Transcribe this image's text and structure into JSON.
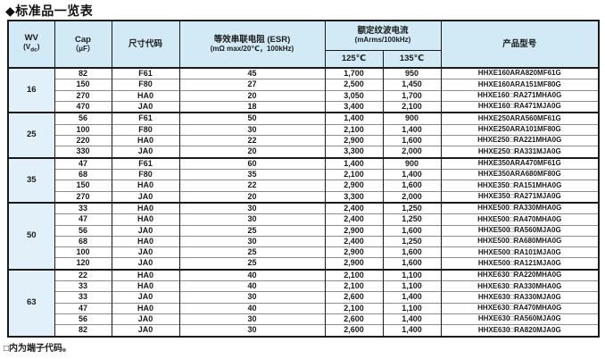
{
  "title": "◆标准品一览表",
  "footnote": "□内为端子代码。",
  "table": {
    "headers": {
      "wv_line1": "WV",
      "wv_sub_open": "(V",
      "wv_sub": "dc",
      "wv_sub_close": ")",
      "cap_line1": "Cap",
      "cap_line2": "（μF）",
      "size_code": "尺寸代码",
      "esr_line1": "等效串联电阻 (ESR)",
      "esr_line2": "(mΩ max/20℃，100kHz)",
      "ripple_line1": "额定纹波电流",
      "ripple_line2": "(mArms/100kHz)",
      "temp_125": "125℃",
      "temp_135": "135℃",
      "product": "产品型号"
    },
    "groups": [
      {
        "wv": "16",
        "rows": [
          {
            "cap": "82",
            "size": "F61",
            "esr": "45",
            "r125": "1,700",
            "r135": "950",
            "model": "HHXE160ARA820MF61G"
          },
          {
            "cap": "150",
            "size": "F80",
            "esr": "27",
            "r125": "2,500",
            "r135": "1,450",
            "model": "HHXE160ARA151MF80G"
          },
          {
            "cap": "270",
            "size": "HA0",
            "esr": "20",
            "r125": "3,050",
            "r135": "1,700",
            "model": "HHXE160□RA271MHA0G"
          },
          {
            "cap": "470",
            "size": "JA0",
            "esr": "18",
            "r125": "3,400",
            "r135": "2,100",
            "model": "HHXE160□RA471MJA0G"
          }
        ]
      },
      {
        "wv": "25",
        "rows": [
          {
            "cap": "56",
            "size": "F61",
            "esr": "50",
            "r125": "1,400",
            "r135": "900",
            "model": "HHXE250ARA560MF61G"
          },
          {
            "cap": "100",
            "size": "F80",
            "esr": "30",
            "r125": "2,100",
            "r135": "1,400",
            "model": "HHXE250ARA101MF80G"
          },
          {
            "cap": "220",
            "size": "HA0",
            "esr": "22",
            "r125": "2,900",
            "r135": "1,600",
            "model": "HHXE250□RA221MHA0G"
          },
          {
            "cap": "330",
            "size": "JA0",
            "esr": "20",
            "r125": "3,300",
            "r135": "2,000",
            "model": "HHXE250□RA331MJA0G"
          }
        ]
      },
      {
        "wv": "35",
        "rows": [
          {
            "cap": "47",
            "size": "F61",
            "esr": "60",
            "r125": "1,400",
            "r135": "900",
            "model": "HHXE350ARA470MF61G"
          },
          {
            "cap": "68",
            "size": "F80",
            "esr": "35",
            "r125": "2,100",
            "r135": "1,400",
            "model": "HHXE350ARA680MF80G"
          },
          {
            "cap": "150",
            "size": "HA0",
            "esr": "22",
            "r125": "2,900",
            "r135": "1,600",
            "model": "HHXE350□RA151MHA0G"
          },
          {
            "cap": "270",
            "size": "JA0",
            "esr": "20",
            "r125": "3,300",
            "r135": "2,000",
            "model": "HHXE350□RA271MJA0G"
          }
        ]
      },
      {
        "wv": "50",
        "rows": [
          {
            "cap": "33",
            "size": "HA0",
            "esr": "30",
            "r125": "2,400",
            "r135": "1,250",
            "model": "HHXE500□RA330MHA0G"
          },
          {
            "cap": "47",
            "size": "HA0",
            "esr": "30",
            "r125": "2,400",
            "r135": "1,250",
            "model": "HHXE500□RA470MHA0G"
          },
          {
            "cap": "56",
            "size": "JA0",
            "esr": "25",
            "r125": "2,900",
            "r135": "1,600",
            "model": "HHXE500□RA560MJA0G"
          },
          {
            "cap": "68",
            "size": "HA0",
            "esr": "30",
            "r125": "2,400",
            "r135": "1,250",
            "model": "HHXE500□RA680MHA0G"
          },
          {
            "cap": "100",
            "size": "JA0",
            "esr": "25",
            "r125": "2,900",
            "r135": "1,600",
            "model": "HHXE500□RA101MJA0G"
          },
          {
            "cap": "120",
            "size": "JA0",
            "esr": "25",
            "r125": "2,900",
            "r135": "1,600",
            "model": "HHXE500□RA121MJA0G"
          }
        ]
      },
      {
        "wv": "63",
        "rows": [
          {
            "cap": "22",
            "size": "HA0",
            "esr": "40",
            "r125": "2,100",
            "r135": "1,100",
            "model": "HHXE630□RA220MHA0G"
          },
          {
            "cap": "33",
            "size": "HA0",
            "esr": "40",
            "r125": "2,100",
            "r135": "1,100",
            "model": "HHXE630□RA330MHA0G"
          },
          {
            "cap": "33",
            "size": "JA0",
            "esr": "30",
            "r125": "2,600",
            "r135": "1,400",
            "model": "HHXE630□RA330MJA0G"
          },
          {
            "cap": "47",
            "size": "HA0",
            "esr": "40",
            "r125": "2,100",
            "r135": "1,100",
            "model": "HHXE630□RA470MHA0G"
          },
          {
            "cap": "56",
            "size": "JA0",
            "esr": "30",
            "r125": "2,600",
            "r135": "1,400",
            "model": "HHXE630□RA560MJA0G"
          },
          {
            "cap": "82",
            "size": "JA0",
            "esr": "30",
            "r125": "2,600",
            "r135": "1,400",
            "model": "HHXE630□RA820MJA0G"
          }
        ]
      }
    ]
  }
}
